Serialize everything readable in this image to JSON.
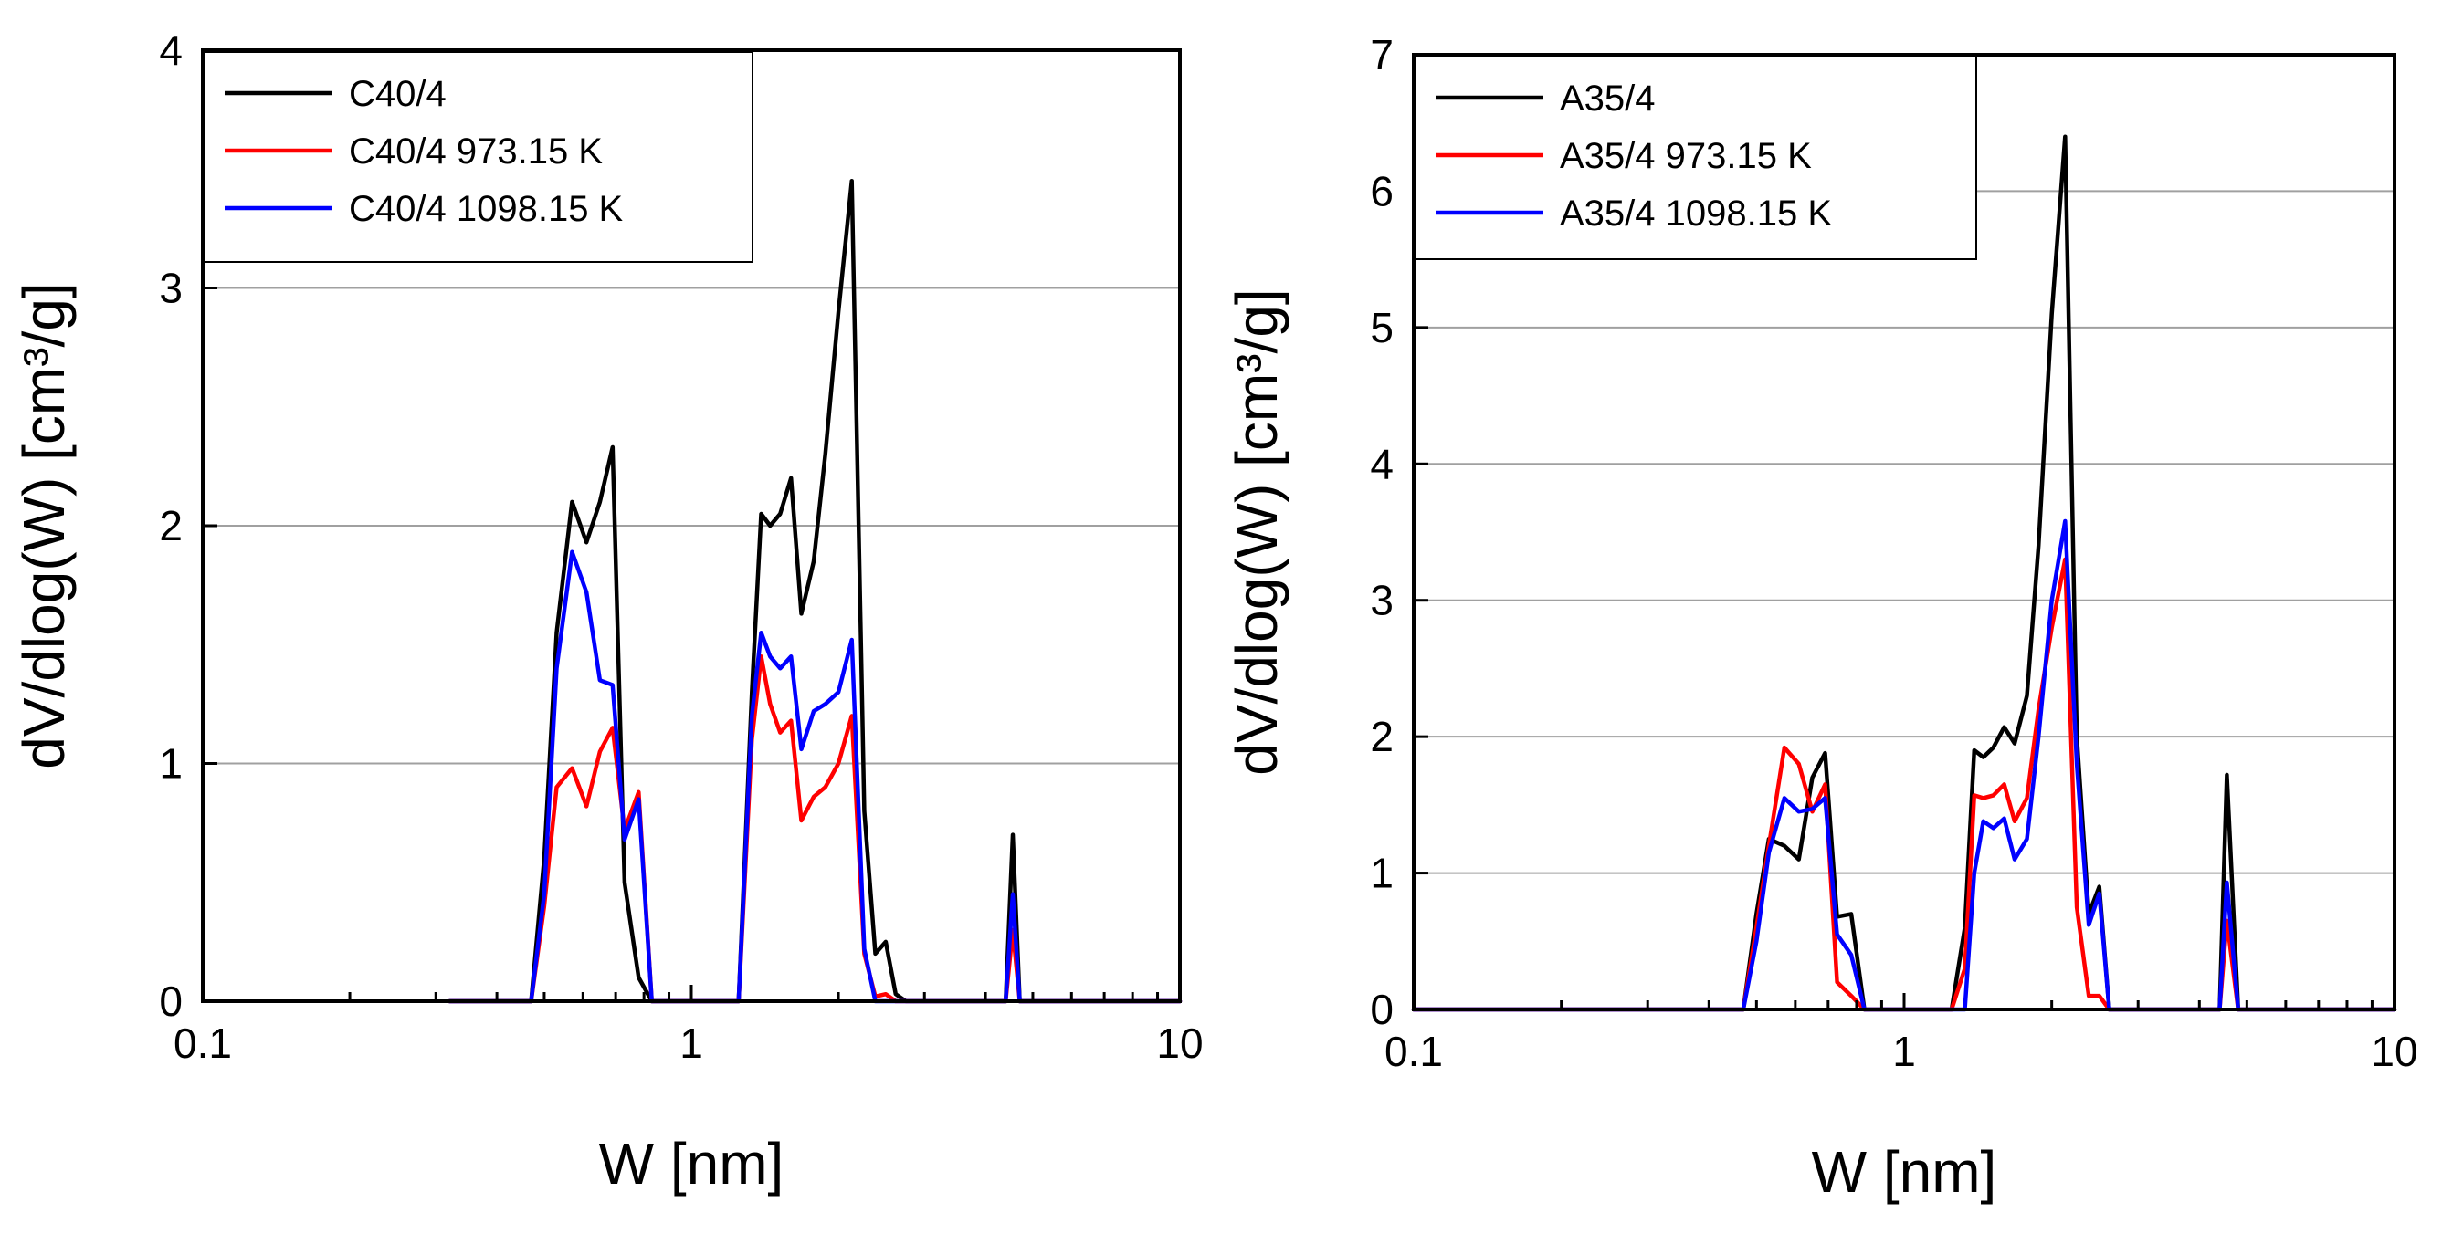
{
  "chart_data": [
    {
      "type": "line",
      "xscale": "log",
      "xlim": [
        0.1,
        10
      ],
      "ylim": [
        0,
        4
      ],
      "xticks": [
        "0.1",
        "1",
        "10"
      ],
      "yticks": [
        "0",
        "1",
        "2",
        "3",
        "4"
      ],
      "xlabel": "W [nm]",
      "ylabel": "dV/dlog(W) [cm³/g]",
      "grid": "horizontal",
      "legend_position": "top-left",
      "series": [
        {
          "name": "C40/4",
          "color": "#000000",
          "x": [
            0.32,
            0.47,
            0.5,
            0.53,
            0.57,
            0.61,
            0.65,
            0.69,
            0.73,
            0.78,
            0.83,
            0.88,
            1.25,
            1.33,
            1.39,
            1.45,
            1.52,
            1.6,
            1.68,
            1.78,
            1.88,
            2.0,
            2.13,
            2.26,
            2.38,
            2.5,
            2.62,
            2.75,
            2.9,
            4.15,
            4.4,
            4.55,
            4.7,
            4.9,
            10
          ],
          "y": [
            0,
            0,
            0.6,
            1.55,
            2.1,
            1.93,
            2.1,
            2.33,
            0.5,
            0.1,
            0,
            0,
            0,
            1.3,
            2.05,
            2.0,
            2.05,
            2.2,
            1.63,
            1.85,
            2.3,
            2.9,
            3.45,
            0.8,
            0.2,
            0.25,
            0.03,
            0,
            0,
            0,
            0,
            0.7,
            0,
            0,
            0
          ]
        },
        {
          "name": "C40/4 973.15 K",
          "color": "#ff0000",
          "x": [
            0.32,
            0.47,
            0.5,
            0.53,
            0.57,
            0.61,
            0.65,
            0.69,
            0.73,
            0.78,
            0.83,
            0.88,
            1.25,
            1.33,
            1.39,
            1.45,
            1.52,
            1.6,
            1.68,
            1.78,
            1.88,
            2.0,
            2.13,
            2.26,
            2.38,
            2.5,
            2.62,
            2.75,
            2.9,
            4.15,
            4.4,
            4.55,
            4.7,
            4.9,
            10
          ],
          "y": [
            0,
            0,
            0.4,
            0.9,
            0.98,
            0.82,
            1.05,
            1.15,
            0.72,
            0.88,
            0,
            0,
            0,
            1.1,
            1.45,
            1.25,
            1.13,
            1.18,
            0.76,
            0.86,
            0.9,
            1.0,
            1.2,
            0.2,
            0.02,
            0.03,
            0,
            0,
            0,
            0,
            0,
            0.3,
            0,
            0,
            0
          ]
        },
        {
          "name": "C40/4 1098.15 K",
          "color": "#0000ff",
          "x": [
            0.32,
            0.47,
            0.5,
            0.53,
            0.57,
            0.61,
            0.65,
            0.69,
            0.73,
            0.78,
            0.83,
            0.88,
            1.25,
            1.33,
            1.39,
            1.45,
            1.52,
            1.6,
            1.68,
            1.78,
            1.88,
            2.0,
            2.13,
            2.26,
            2.38,
            2.5,
            2.62,
            2.75,
            2.9,
            4.15,
            4.4,
            4.55,
            4.7,
            4.9,
            10
          ],
          "y": [
            0,
            0,
            0.45,
            1.4,
            1.89,
            1.72,
            1.35,
            1.33,
            0.68,
            0.85,
            0,
            0,
            0,
            1.2,
            1.55,
            1.45,
            1.4,
            1.45,
            1.06,
            1.22,
            1.25,
            1.3,
            1.52,
            0.22,
            0,
            0,
            0,
            0,
            0,
            0,
            0,
            0.45,
            0,
            0,
            0
          ]
        }
      ]
    },
    {
      "type": "line",
      "xscale": "log",
      "xlim": [
        0.1,
        10
      ],
      "ylim": [
        0,
        7
      ],
      "xticks": [
        "0.1",
        "1",
        "10"
      ],
      "yticks": [
        "0",
        "1",
        "2",
        "3",
        "4",
        "5",
        "6",
        "7"
      ],
      "xlabel": "W [nm]",
      "ylabel": "dV/dlog(W) [cm³/g]",
      "grid": "horizontal",
      "legend_position": "top-left",
      "series": [
        {
          "name": "A35/4",
          "color": "#000000",
          "x": [
            0.1,
            0.47,
            0.5,
            0.53,
            0.57,
            0.61,
            0.65,
            0.69,
            0.73,
            0.78,
            0.83,
            1.25,
            1.33,
            1.39,
            1.45,
            1.52,
            1.6,
            1.68,
            1.78,
            1.88,
            2.0,
            2.13,
            2.25,
            2.38,
            2.5,
            2.62,
            2.75,
            4.15,
            4.4,
            4.55,
            4.8,
            10
          ],
          "y": [
            0,
            0,
            0.7,
            1.25,
            1.2,
            1.1,
            1.7,
            1.88,
            0.68,
            0.7,
            0,
            0,
            0.6,
            1.9,
            1.85,
            1.92,
            2.07,
            1.95,
            2.3,
            3.4,
            5.1,
            6.4,
            2.0,
            0.7,
            0.9,
            0,
            0,
            0,
            0,
            1.72,
            0,
            0
          ]
        },
        {
          "name": "A35/4 973.15 K",
          "color": "#ff0000",
          "x": [
            0.1,
            0.47,
            0.5,
            0.53,
            0.57,
            0.61,
            0.65,
            0.69,
            0.73,
            0.78,
            0.83,
            1.25,
            1.33,
            1.39,
            1.45,
            1.52,
            1.6,
            1.68,
            1.78,
            1.88,
            2.0,
            2.13,
            2.25,
            2.38,
            2.5,
            2.62,
            2.75,
            4.15,
            4.4,
            4.55,
            4.8,
            10
          ],
          "y": [
            0,
            0,
            0.6,
            1.2,
            1.92,
            1.8,
            1.45,
            1.65,
            0.2,
            0.1,
            0,
            0,
            0.3,
            1.57,
            1.55,
            1.57,
            1.65,
            1.38,
            1.55,
            2.2,
            2.8,
            3.3,
            0.75,
            0.1,
            0.1,
            0,
            0,
            0,
            0,
            0.65,
            0,
            0
          ]
        },
        {
          "name": "A35/4 1098.15 K",
          "color": "#0000ff",
          "x": [
            0.1,
            0.47,
            0.5,
            0.53,
            0.57,
            0.61,
            0.65,
            0.69,
            0.73,
            0.78,
            0.83,
            1.25,
            1.33,
            1.39,
            1.45,
            1.52,
            1.6,
            1.68,
            1.78,
            1.88,
            2.0,
            2.13,
            2.25,
            2.38,
            2.5,
            2.62,
            2.75,
            4.15,
            4.4,
            4.55,
            4.8,
            10
          ],
          "y": [
            0,
            0,
            0.5,
            1.15,
            1.55,
            1.45,
            1.47,
            1.55,
            0.55,
            0.4,
            0,
            0,
            0,
            1.0,
            1.38,
            1.33,
            1.4,
            1.1,
            1.25,
            2.0,
            3.0,
            3.58,
            1.8,
            0.62,
            0.85,
            0,
            0,
            0,
            0,
            0.93,
            0,
            0
          ]
        }
      ]
    }
  ]
}
